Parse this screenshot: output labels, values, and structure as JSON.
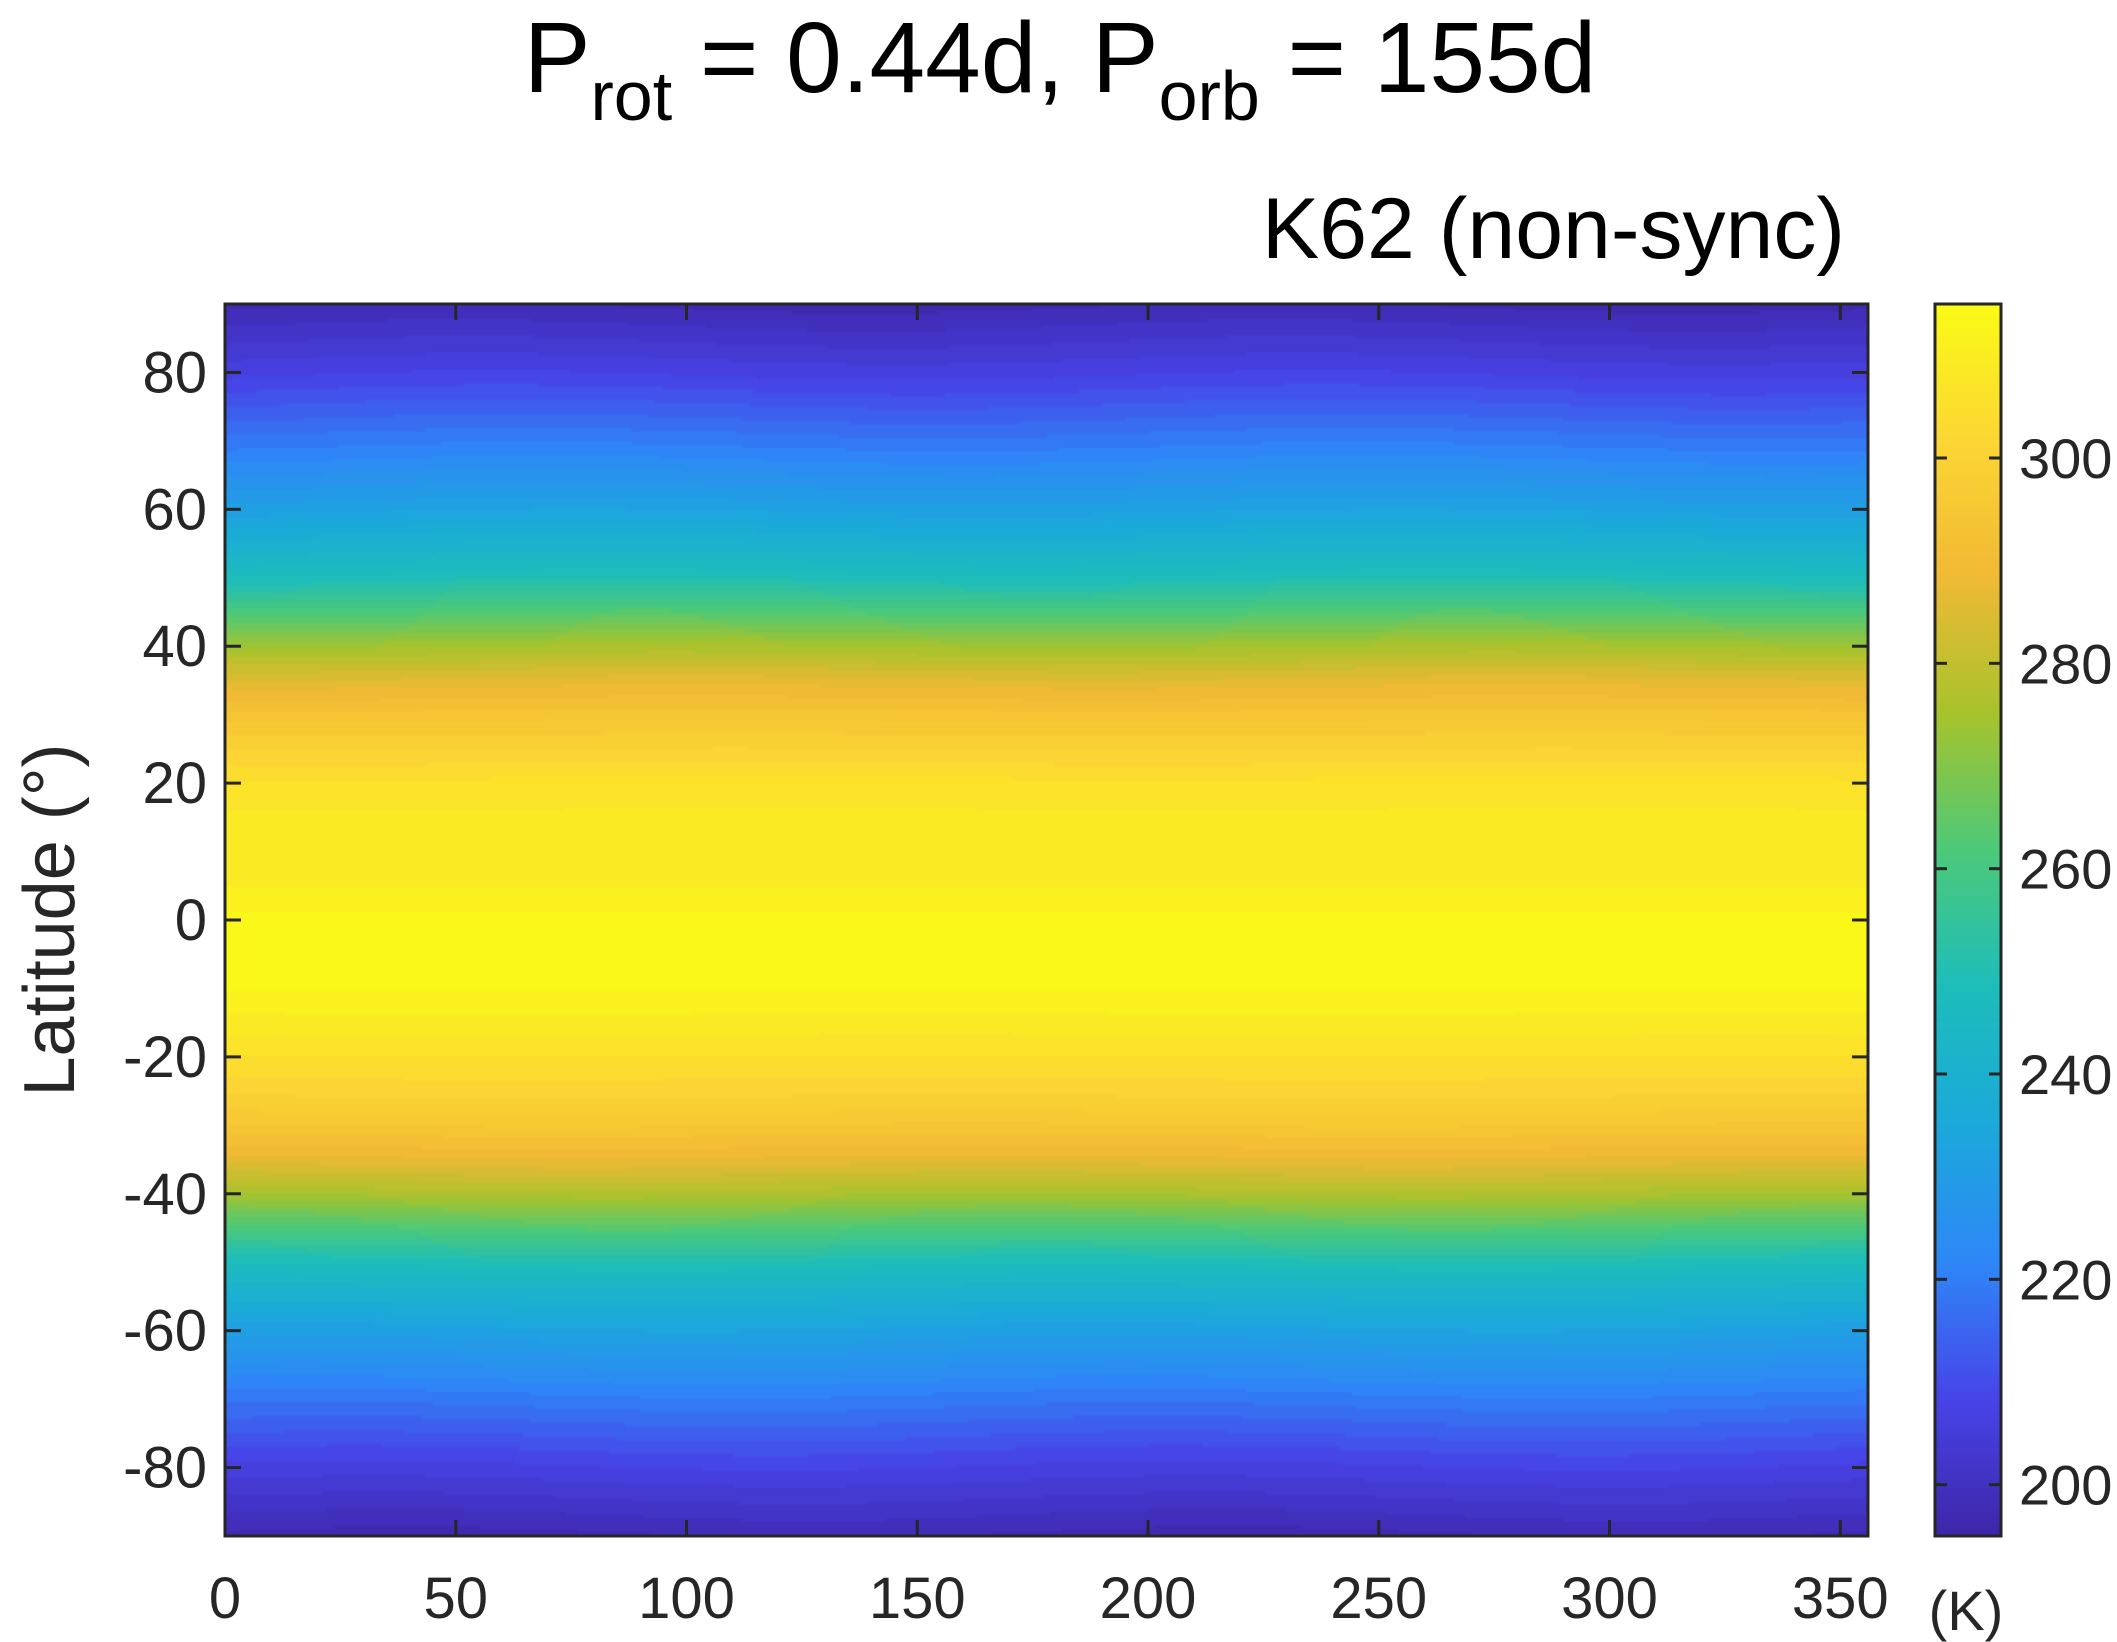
{
  "chart_data": {
    "type": "heatmap",
    "title": {
      "parts": [
        {
          "text": "P"
        },
        {
          "text": "rot",
          "sub": true
        },
        {
          "text": " = 0.44d, P"
        },
        {
          "text": "orb",
          "sub": true
        },
        {
          "text": " = 155d"
        }
      ]
    },
    "subtitle": "K62 (non-sync)",
    "xlabel": "",
    "ylabel": "Latitude (°)",
    "xlim": [
      0,
      356
    ],
    "ylim": [
      -90,
      90
    ],
    "xticks": [
      0,
      50,
      100,
      150,
      200,
      250,
      300,
      350
    ],
    "yticks": [
      80,
      60,
      40,
      20,
      0,
      -20,
      -40,
      -60,
      -80
    ],
    "grid": false,
    "colorbar": {
      "label": "(K)",
      "range": [
        195,
        315
      ],
      "ticks": [
        200,
        220,
        240,
        260,
        280,
        300
      ],
      "tick_labels": [
        "200",
        "220",
        "240",
        "260",
        "280",
        "300"
      ],
      "colormap": [
        "#3e26a8",
        "#4744e8",
        "#2e87f7",
        "#1ba9da",
        "#1cbdbb",
        "#4cc979",
        "#a6c32c",
        "#f0b934",
        "#fcd634",
        "#f9fb15"
      ]
    },
    "field": {
      "lat_profile": [
        [
          -90,
          197
        ],
        [
          -80,
          207
        ],
        [
          -70,
          219
        ],
        [
          -60,
          232
        ],
        [
          -55,
          240
        ],
        [
          -50,
          249
        ],
        [
          -45,
          262
        ],
        [
          -40,
          276
        ],
        [
          -35,
          287
        ],
        [
          -30,
          295
        ],
        [
          -25,
          301
        ],
        [
          -20,
          305
        ],
        [
          -15,
          309
        ],
        [
          -10,
          313
        ],
        [
          -5,
          314
        ],
        [
          0,
          313
        ],
        [
          5,
          310
        ],
        [
          10,
          309
        ],
        [
          15,
          308
        ],
        [
          20,
          306
        ],
        [
          25,
          300
        ],
        [
          30,
          294
        ],
        [
          35,
          286
        ],
        [
          40,
          275
        ],
        [
          45,
          262
        ],
        [
          50,
          249
        ],
        [
          55,
          240
        ],
        [
          60,
          232
        ],
        [
          70,
          219
        ],
        [
          80,
          207
        ],
        [
          90,
          197
        ]
      ],
      "contour_step": 2.5
    }
  }
}
